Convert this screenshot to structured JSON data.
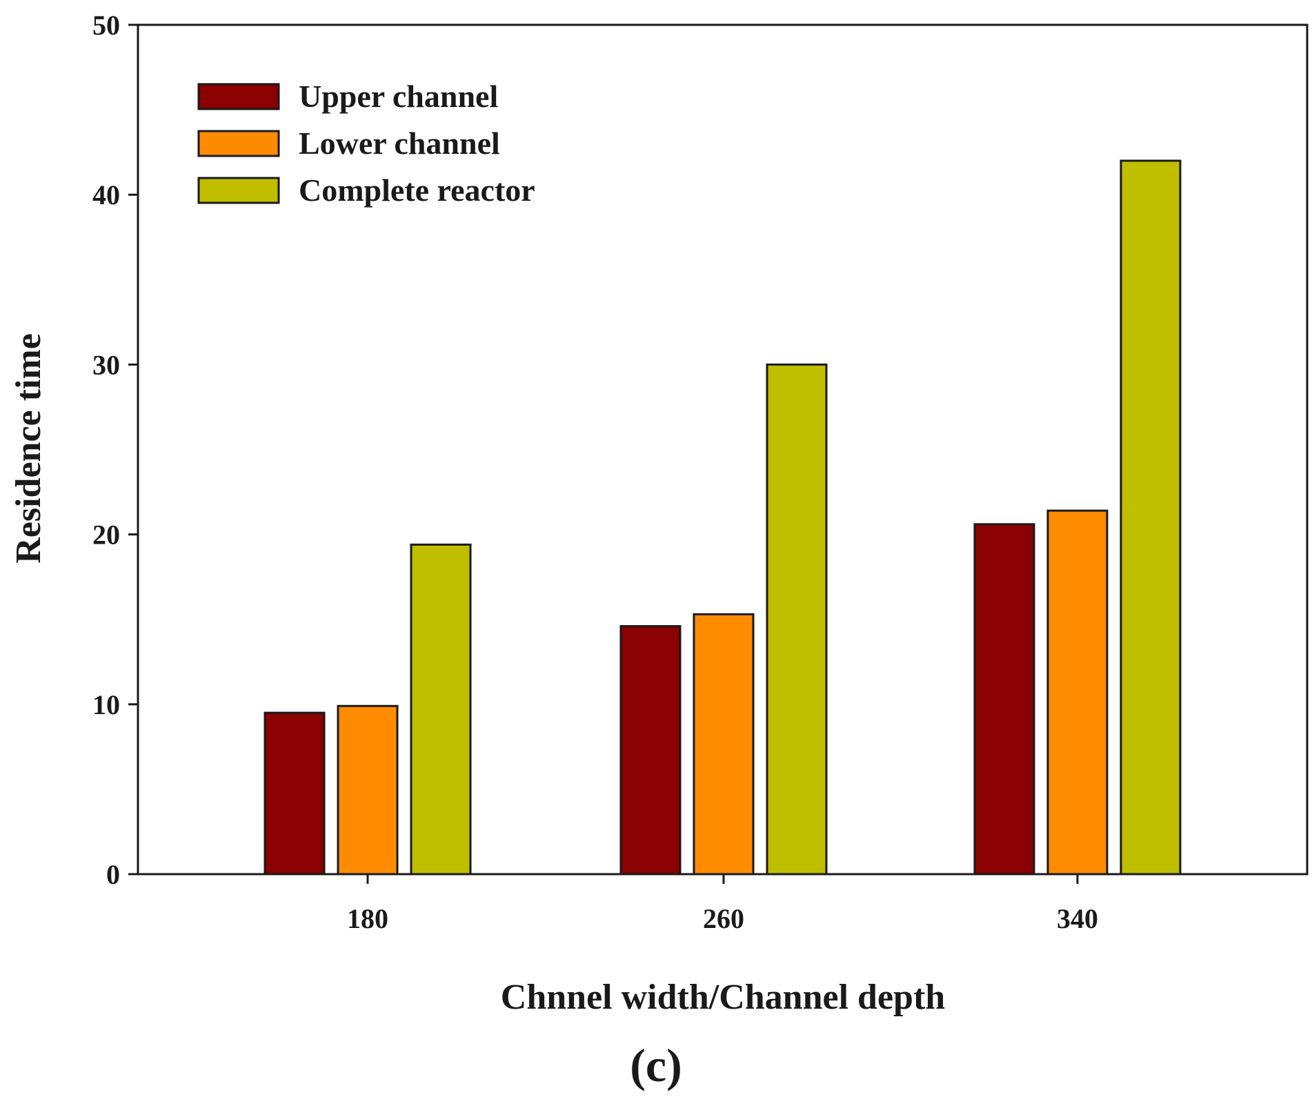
{
  "chart_data": {
    "type": "bar",
    "title": "",
    "xlabel": "Chnnel width/Channel depth",
    "ylabel": "Residence time",
    "categories": [
      "180",
      "260",
      "340"
    ],
    "ylim": [
      0,
      50
    ],
    "yticks": [
      0,
      10,
      20,
      30,
      40,
      50
    ],
    "grid": false,
    "legend_position": "top-left",
    "series": [
      {
        "name": "Upper channel",
        "color": "#8b0000",
        "values": [
          9.5,
          14.6,
          20.6
        ]
      },
      {
        "name": "Lower channel",
        "color": "#ff8c00",
        "values": [
          9.9,
          15.3,
          21.4
        ]
      },
      {
        "name": "Complete reactor",
        "color": "#bfbf00",
        "values": [
          19.4,
          30.0,
          42.0
        ]
      }
    ]
  },
  "figure": {
    "panel_label": "(c)"
  }
}
